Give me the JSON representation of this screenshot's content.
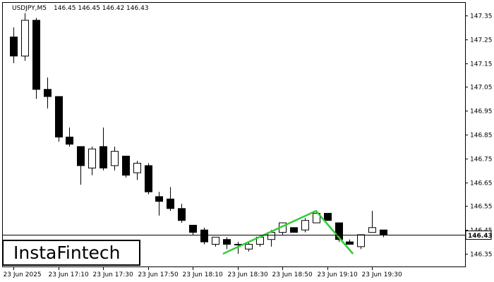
{
  "header": {
    "symbol": "USDJPY,M5",
    "ohlc": "146.45 146.45 146.42 146.43"
  },
  "logo": {
    "text": "InstaFintech"
  },
  "colors": {
    "pattern_line": "#33cc33",
    "bull_fill": "#ffffff",
    "bear_fill": "#000000",
    "axis": "#000000",
    "price_tag_bg": "#ffffff"
  },
  "chart_data": {
    "type": "candlestick",
    "symbol": "USDJPY",
    "timeframe": "M5",
    "ylim": [
      146.3,
      147.42
    ],
    "y_ticks": [
      "147.35",
      "147.25",
      "147.15",
      "147.05",
      "146.95",
      "146.85",
      "146.75",
      "146.65",
      "146.55",
      "146.45",
      "146.35"
    ],
    "x_ticks": [
      {
        "index": 0,
        "label": "23 Jun 2025"
      },
      {
        "index": 4,
        "label": "23 Jun 17:10"
      },
      {
        "index": 8,
        "label": "23 Jun 17:30"
      },
      {
        "index": 12,
        "label": "23 Jun 17:50"
      },
      {
        "index": 16,
        "label": "23 Jun 18:10"
      },
      {
        "index": 20,
        "label": "23 Jun 18:30"
      },
      {
        "index": 24,
        "label": "23 Jun 18:50"
      },
      {
        "index": 28,
        "label": "23 Jun 19:10"
      },
      {
        "index": 32,
        "label": "23 Jun 19:30"
      }
    ],
    "current_price": "146.43",
    "candles": [
      {
        "o": 147.26,
        "h": 147.3,
        "l": 147.15,
        "c": 147.18
      },
      {
        "o": 147.18,
        "h": 147.36,
        "l": 147.16,
        "c": 147.33
      },
      {
        "o": 147.33,
        "h": 147.34,
        "l": 147.0,
        "c": 147.04
      },
      {
        "o": 147.04,
        "h": 147.09,
        "l": 146.96,
        "c": 147.01
      },
      {
        "o": 147.01,
        "h": 147.01,
        "l": 146.82,
        "c": 146.84
      },
      {
        "o": 146.84,
        "h": 146.88,
        "l": 146.8,
        "c": 146.81
      },
      {
        "o": 146.8,
        "h": 146.8,
        "l": 146.64,
        "c": 146.72
      },
      {
        "o": 146.71,
        "h": 146.8,
        "l": 146.68,
        "c": 146.79
      },
      {
        "o": 146.8,
        "h": 146.88,
        "l": 146.7,
        "c": 146.71
      },
      {
        "o": 146.72,
        "h": 146.8,
        "l": 146.7,
        "c": 146.78
      },
      {
        "o": 146.76,
        "h": 146.76,
        "l": 146.67,
        "c": 146.68
      },
      {
        "o": 146.69,
        "h": 146.74,
        "l": 146.66,
        "c": 146.73
      },
      {
        "o": 146.72,
        "h": 146.73,
        "l": 146.6,
        "c": 146.61
      },
      {
        "o": 146.59,
        "h": 146.61,
        "l": 146.51,
        "c": 146.57
      },
      {
        "o": 146.58,
        "h": 146.63,
        "l": 146.53,
        "c": 146.54
      },
      {
        "o": 146.54,
        "h": 146.56,
        "l": 146.48,
        "c": 146.49
      },
      {
        "o": 146.47,
        "h": 146.47,
        "l": 146.43,
        "c": 146.44
      },
      {
        "o": 146.45,
        "h": 146.46,
        "l": 146.39,
        "c": 146.4
      },
      {
        "o": 146.39,
        "h": 146.42,
        "l": 146.38,
        "c": 146.42
      },
      {
        "o": 146.41,
        "h": 146.42,
        "l": 146.37,
        "c": 146.39
      },
      {
        "o": 146.39,
        "h": 146.4,
        "l": 146.35,
        "c": 146.39
      },
      {
        "o": 146.37,
        "h": 146.4,
        "l": 146.36,
        "c": 146.39
      },
      {
        "o": 146.39,
        "h": 146.42,
        "l": 146.38,
        "c": 146.42
      },
      {
        "o": 146.41,
        "h": 146.45,
        "l": 146.38,
        "c": 146.44
      },
      {
        "o": 146.44,
        "h": 146.48,
        "l": 146.43,
        "c": 146.48
      },
      {
        "o": 146.46,
        "h": 146.46,
        "l": 146.44,
        "c": 146.44
      },
      {
        "o": 146.45,
        "h": 146.5,
        "l": 146.44,
        "c": 146.49
      },
      {
        "o": 146.48,
        "h": 146.53,
        "l": 146.48,
        "c": 146.52
      },
      {
        "o": 146.52,
        "h": 146.52,
        "l": 146.49,
        "c": 146.49
      },
      {
        "o": 146.48,
        "h": 146.48,
        "l": 146.4,
        "c": 146.41
      },
      {
        "o": 146.4,
        "h": 146.41,
        "l": 146.39,
        "c": 146.39
      },
      {
        "o": 146.38,
        "h": 146.43,
        "l": 146.37,
        "c": 146.43
      },
      {
        "o": 146.44,
        "h": 146.53,
        "l": 146.44,
        "c": 146.46
      },
      {
        "o": 146.45,
        "h": 146.45,
        "l": 146.42,
        "c": 146.43
      }
    ],
    "pattern": {
      "type": "double-top",
      "points": [
        {
          "i": 18.7,
          "price": 146.35
        },
        {
          "i": 27.0,
          "price": 146.53
        },
        {
          "i": 30.3,
          "price": 146.35
        }
      ]
    }
  }
}
